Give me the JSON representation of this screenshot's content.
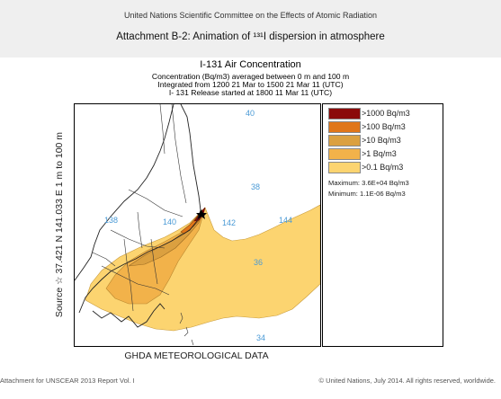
{
  "slide": {
    "organization": "United Nations Scientific Committee on the Effects of Atomic Radiation",
    "title": "Attachment B-2: Animation of ¹³¹I dispersion in atmosphere"
  },
  "figure": {
    "title": "I-131 Air Concentration",
    "subtitle_line1": "Concentration  (Bq/m3) averaged between     0 m and   100 m",
    "subtitle_line2": "Integrated from 1200 21 Mar to 1500 21 Mar 11 (UTC)",
    "subtitle_line3": "I- 131 Release started at 1800 11 Mar 11 (UTC)",
    "y_axis_label": "Source ☆ 37.421  N 141.033  E      1 m to   100 m",
    "x_axis_label": "GHDA METEOROLOGICAL DATA"
  },
  "map": {
    "grid_labels": {
      "lat_40": "40",
      "lat_38": "38",
      "lat_36": "36",
      "lat_34": "34",
      "lon_138": "138",
      "lon_140": "140",
      "lon_142": "142",
      "lon_144": "144"
    },
    "colors": {
      "land_and_sea": "#ffffff",
      "coast_border": "#222222",
      "grid_label": "#4a9ad6"
    }
  },
  "legend": {
    "items": [
      {
        "label": ">1000 Bq/m3",
        "color": "#8b0a0a"
      },
      {
        "label": ">100 Bq/m3",
        "color": "#e0761a"
      },
      {
        "label": ">10 Bq/m3",
        "color": "#dba040"
      },
      {
        "label": ">1 Bq/m3",
        "color": "#f2b24a"
      },
      {
        "label": ">0.1 Bq/m3",
        "color": "#fcd470"
      }
    ],
    "maximum": "Maximum: 3.6E+04 Bq/m3",
    "minimum": "Minimum: 1.1E-06 Bq/m3"
  },
  "footer": {
    "left": "Attachment for UNSCEAR 2013 Report Vol. I",
    "right": "© United Nations, July 2014. All rights reserved, worldwide."
  }
}
